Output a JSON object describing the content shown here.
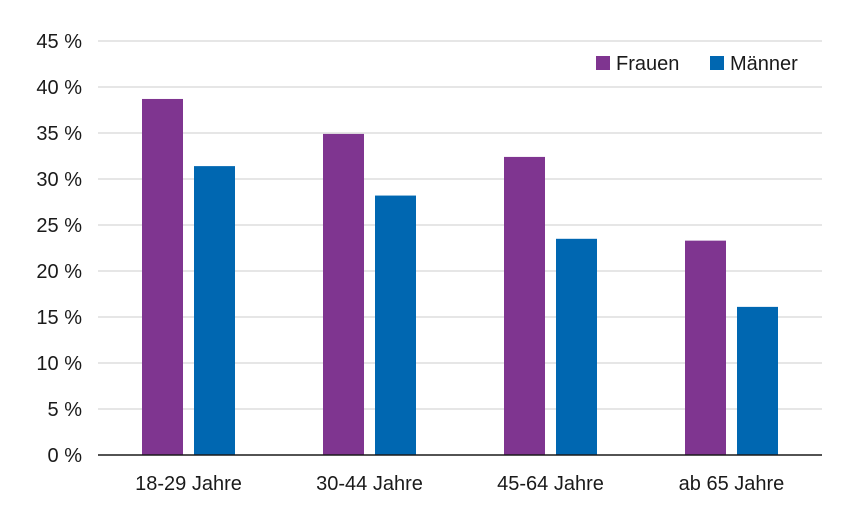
{
  "chart_data": {
    "type": "bar",
    "title": "",
    "xlabel": "",
    "ylabel": "",
    "categories": [
      "18-29 Jahre",
      "30-44 Jahre",
      "45-64 Jahre",
      "ab 65 Jahre"
    ],
    "series": [
      {
        "name": "Frauen",
        "color": "#7f3590",
        "values": [
          38.7,
          34.9,
          32.4,
          23.3
        ]
      },
      {
        "name": "Männer",
        "color": "#0067b1",
        "values": [
          31.4,
          28.2,
          23.5,
          16.1
        ]
      }
    ],
    "ylim": [
      0,
      45
    ],
    "yticks": [
      {
        "value": 0,
        "label": "0 %"
      },
      {
        "value": 5,
        "label": "5 %"
      },
      {
        "value": 10,
        "label": "10 %"
      },
      {
        "value": 15,
        "label": "15 %"
      },
      {
        "value": 20,
        "label": "20 %"
      },
      {
        "value": 25,
        "label": "25 %"
      },
      {
        "value": 30,
        "label": "30 %"
      },
      {
        "value": 35,
        "label": "35 %"
      },
      {
        "value": 40,
        "label": "40 %"
      },
      {
        "value": 45,
        "label": "45 %"
      }
    ],
    "grid": true,
    "legend_position": "top-right"
  }
}
